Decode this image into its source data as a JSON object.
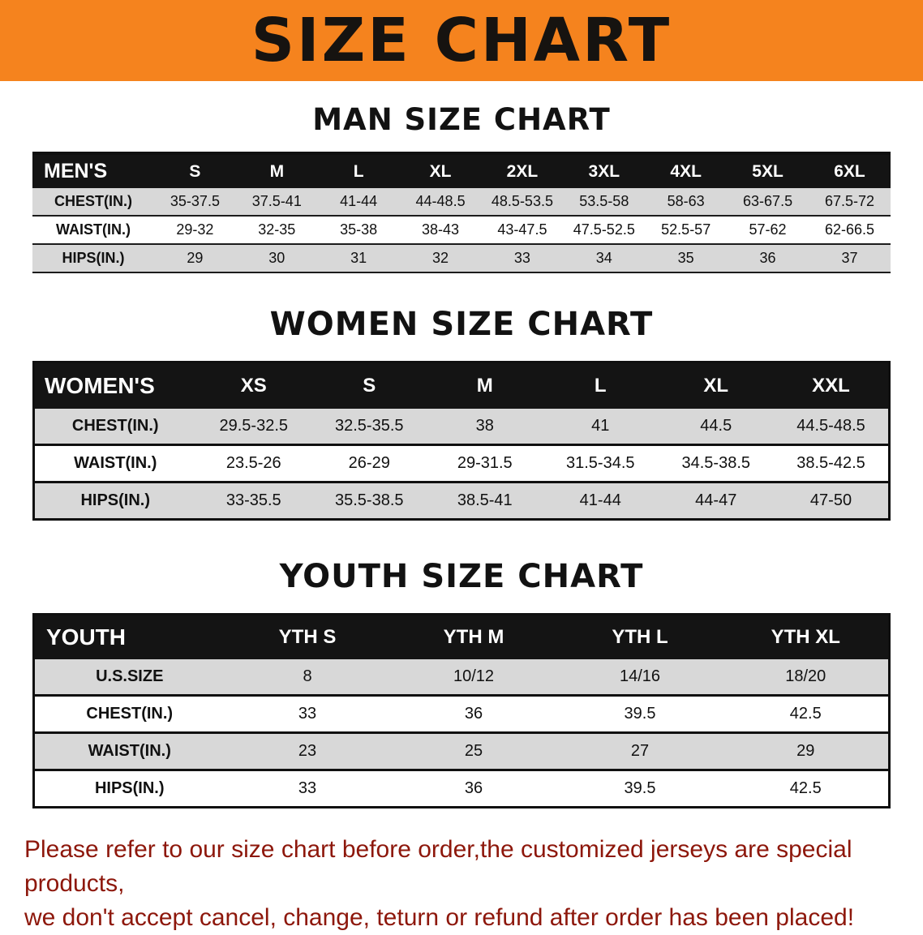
{
  "banner": {
    "title": "SIZE CHART",
    "bg_color": "#F5831E"
  },
  "colors": {
    "header_row_bg": "#141414",
    "alt_row_bg": "#D8D8D8",
    "footer_text": "#8D170B"
  },
  "men": {
    "heading": "MAN SIZE CHART",
    "label": "MEN'S",
    "sizes": [
      "S",
      "M",
      "L",
      "XL",
      "2XL",
      "3XL",
      "4XL",
      "5XL",
      "6XL"
    ],
    "rows": [
      {
        "label": "CHEST(IN.)",
        "values": [
          "35-37.5",
          "37.5-41",
          "41-44",
          "44-48.5",
          "48.5-53.5",
          "53.5-58",
          "58-63",
          "63-67.5",
          "67.5-72"
        ]
      },
      {
        "label": "WAIST(IN.)",
        "values": [
          "29-32",
          "32-35",
          "35-38",
          "38-43",
          "43-47.5",
          "47.5-52.5",
          "52.5-57",
          "57-62",
          "62-66.5"
        ]
      },
      {
        "label": "HIPS(IN.)",
        "values": [
          "29",
          "30",
          "31",
          "32",
          "33",
          "34",
          "35",
          "36",
          "37"
        ]
      }
    ]
  },
  "women": {
    "heading": "WOMEN SIZE CHART",
    "label": "WOMEN'S",
    "sizes": [
      "XS",
      "S",
      "M",
      "L",
      "XL",
      "XXL"
    ],
    "rows": [
      {
        "label": "CHEST(IN.)",
        "values": [
          "29.5-32.5",
          "32.5-35.5",
          "38",
          "41",
          "44.5",
          "44.5-48.5"
        ]
      },
      {
        "label": "WAIST(IN.)",
        "values": [
          "23.5-26",
          "26-29",
          "29-31.5",
          "31.5-34.5",
          "34.5-38.5",
          "38.5-42.5"
        ]
      },
      {
        "label": "HIPS(IN.)",
        "values": [
          "33-35.5",
          "35.5-38.5",
          "38.5-41",
          "41-44",
          "44-47",
          "47-50"
        ]
      }
    ]
  },
  "youth": {
    "heading": "YOUTH SIZE CHART",
    "label": "YOUTH",
    "sizes": [
      "YTH S",
      "YTH M",
      "YTH L",
      "YTH XL"
    ],
    "rows": [
      {
        "label": "U.S.SIZE",
        "values": [
          "8",
          "10/12",
          "14/16",
          "18/20"
        ]
      },
      {
        "label": "CHEST(IN.)",
        "values": [
          "33",
          "36",
          "39.5",
          "42.5"
        ]
      },
      {
        "label": "WAIST(IN.)",
        "values": [
          "23",
          "25",
          "27",
          "29"
        ]
      },
      {
        "label": "HIPS(IN.)",
        "values": [
          "33",
          "36",
          "39.5",
          "42.5"
        ]
      }
    ]
  },
  "footer": {
    "line1": "Please refer to our size chart before order,the customized jerseys are special products,",
    "line2": "we don't accept cancel, change, teturn or refund after order has been placed!"
  }
}
